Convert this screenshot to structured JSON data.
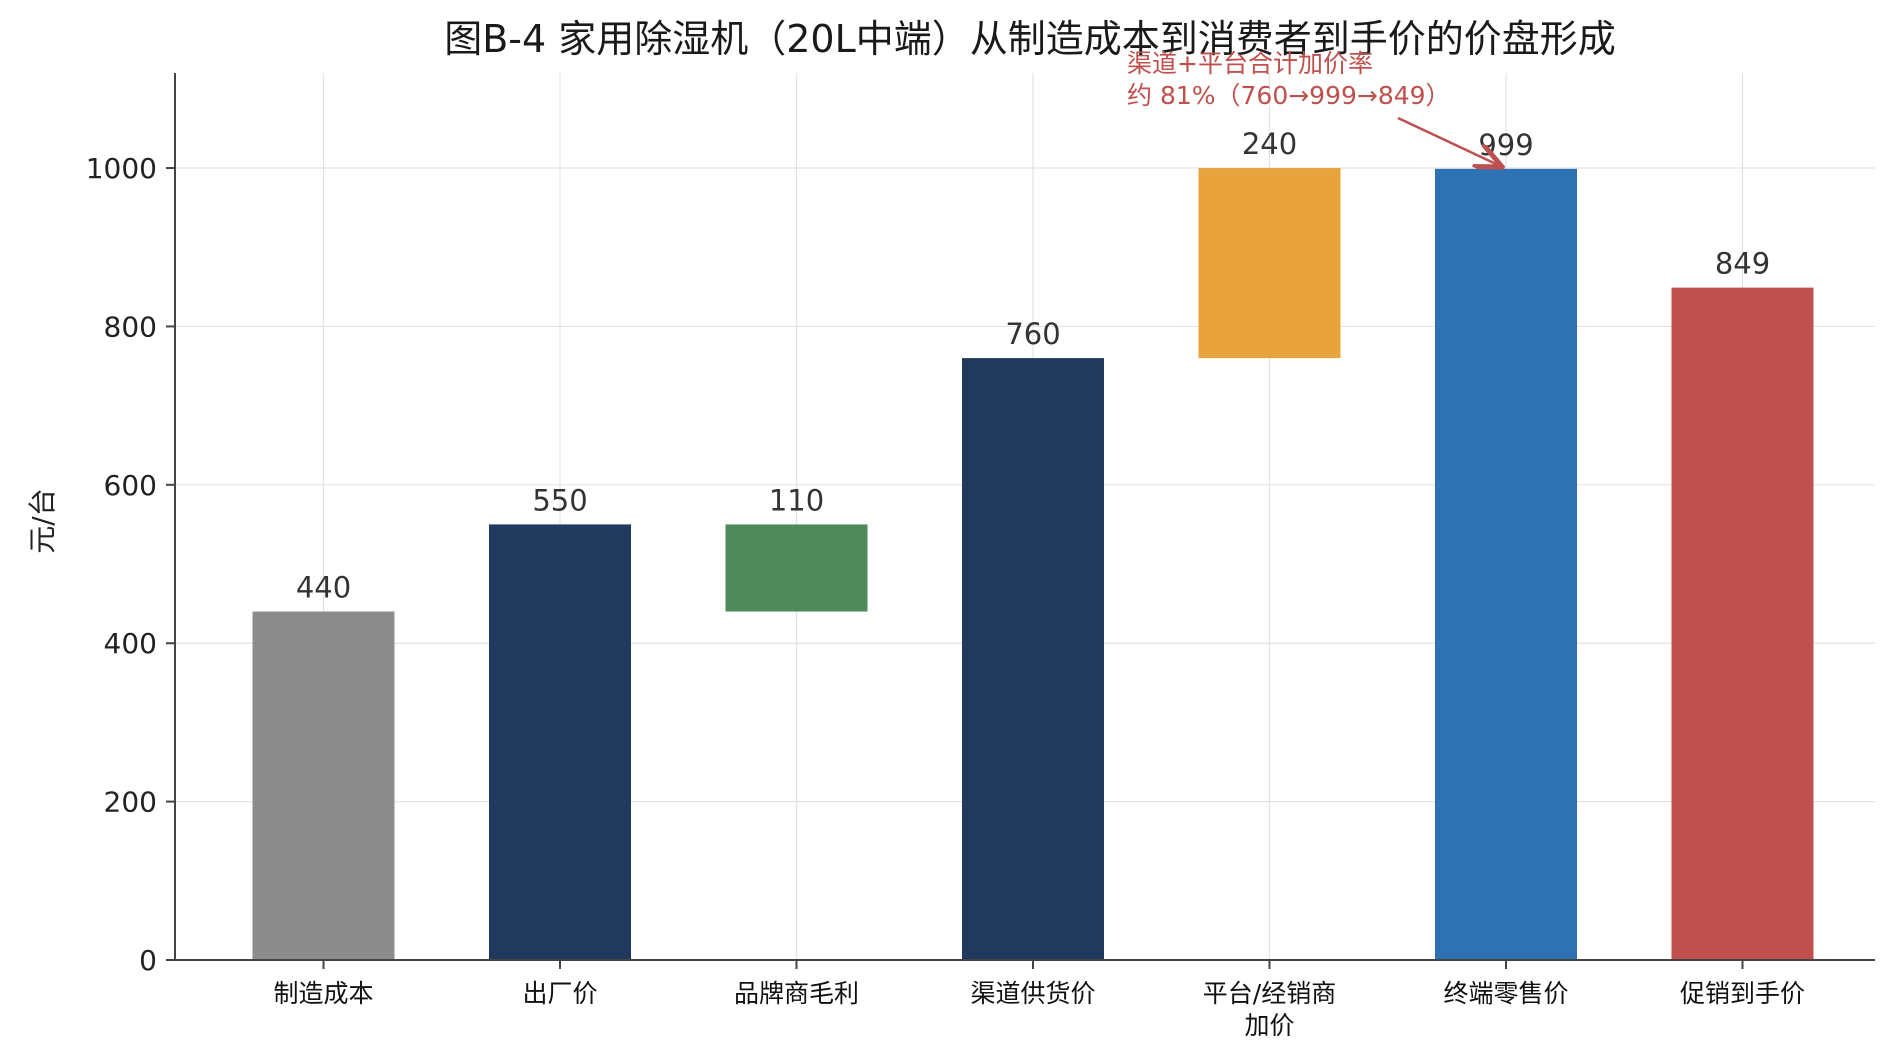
{
  "chart_data": {
    "type": "bar",
    "subtype": "waterfall",
    "title": "图B-4  家用除湿机（20L中端）从制造成本到消费者到手价的价盘形成",
    "ylabel": "元/台",
    "xlabel": "",
    "ylim": [
      0,
      1120
    ],
    "yticks": [
      0,
      200,
      400,
      600,
      800,
      1000
    ],
    "grid": true,
    "categories": [
      [
        "制造成本"
      ],
      [
        "出厂价"
      ],
      [
        "品牌商毛利"
      ],
      [
        "渠道供货价"
      ],
      [
        "平台/经销商",
        "加价"
      ],
      [
        "终端零售价"
      ],
      [
        "促销到手价"
      ]
    ],
    "bars": [
      {
        "bottom": 0,
        "top": 440,
        "label": "440",
        "color": "#8c8c8c"
      },
      {
        "bottom": 0,
        "top": 550,
        "label": "550",
        "color": "#1f3a5c"
      },
      {
        "bottom": 440,
        "top": 550,
        "label": "110",
        "color": "#4f8a5b"
      },
      {
        "bottom": 0,
        "top": 760,
        "label": "760",
        "color": "#1f3a5c"
      },
      {
        "bottom": 760,
        "top": 1000,
        "label": "240",
        "color": "#e8a33d"
      },
      {
        "bottom": 0,
        "top": 999,
        "label": "999",
        "color": "#2e72b3"
      },
      {
        "bottom": 0,
        "top": 849,
        "label": "849",
        "color": "#c0504d"
      }
    ],
    "annotation": {
      "lines": [
        "渠道+平台合计加价率",
        "约 81%（760→999→849）"
      ],
      "points_to_category": 5,
      "points_to_value": 999,
      "color": "#c0504d"
    }
  }
}
